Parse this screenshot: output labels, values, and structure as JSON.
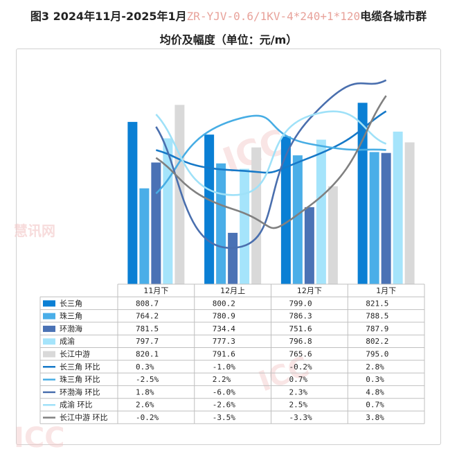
{
  "title": {
    "line1_pre": "图3 2024年11月-2025年1月",
    "line1_spec": "ZR-YJV-0.6/1KV-4*240+1*120",
    "line1_post": "电缆各城市群",
    "line2": "均价及幅度（单位：元/m）"
  },
  "watermarks": [
    "ICC",
    "慧讯网"
  ],
  "colors": {
    "长三角": "#0a7fd4",
    "珠三角": "#4aaee8",
    "环渤海": "#4a72b5",
    "成渝": "#a5e4fb",
    "长江中游": "#d9d9d9",
    "长三角_line": "#1679c8",
    "珠三角_line": "#47ade4",
    "环渤海_line": "#4a6fae",
    "成渝_line": "#9fe1f8",
    "长江中游_line": "#808080"
  },
  "chart_data": {
    "type": "bar",
    "categories": [
      "11月下",
      "12月上",
      "12月下",
      "1月下"
    ],
    "bar_series": [
      {
        "name": "长三角",
        "values": [
          "808.7",
          "800.2",
          "799.0",
          "821.5"
        ]
      },
      {
        "name": "珠三角",
        "values": [
          "764.2",
          "780.9",
          "786.3",
          "788.5"
        ]
      },
      {
        "name": "环渤海",
        "values": [
          "781.5",
          "734.4",
          "751.6",
          "787.9"
        ]
      },
      {
        "name": "成渝",
        "values": [
          "797.7",
          "777.3",
          "796.8",
          "802.2"
        ]
      },
      {
        "name": "长江中游",
        "values": [
          "820.1",
          "791.6",
          "765.6",
          "795.0"
        ]
      }
    ],
    "line_series": [
      {
        "name": "长三角 环比",
        "values": [
          "0.3%",
          "-1.0%",
          "-0.2%",
          "2.8%"
        ]
      },
      {
        "name": "珠三角 环比",
        "values": [
          "-2.5%",
          "2.2%",
          "0.7%",
          "0.3%"
        ]
      },
      {
        "name": "环渤海 环比",
        "values": [
          "1.8%",
          "-6.0%",
          "2.3%",
          "4.8%"
        ]
      },
      {
        "name": "成渝 环比",
        "values": [
          "2.6%",
          "-2.6%",
          "2.5%",
          "0.7%"
        ]
      },
      {
        "name": "长江中游 环比",
        "values": [
          "-0.2%",
          "-3.5%",
          "-3.3%",
          "3.8%"
        ]
      }
    ],
    "legend": "data-table"
  }
}
